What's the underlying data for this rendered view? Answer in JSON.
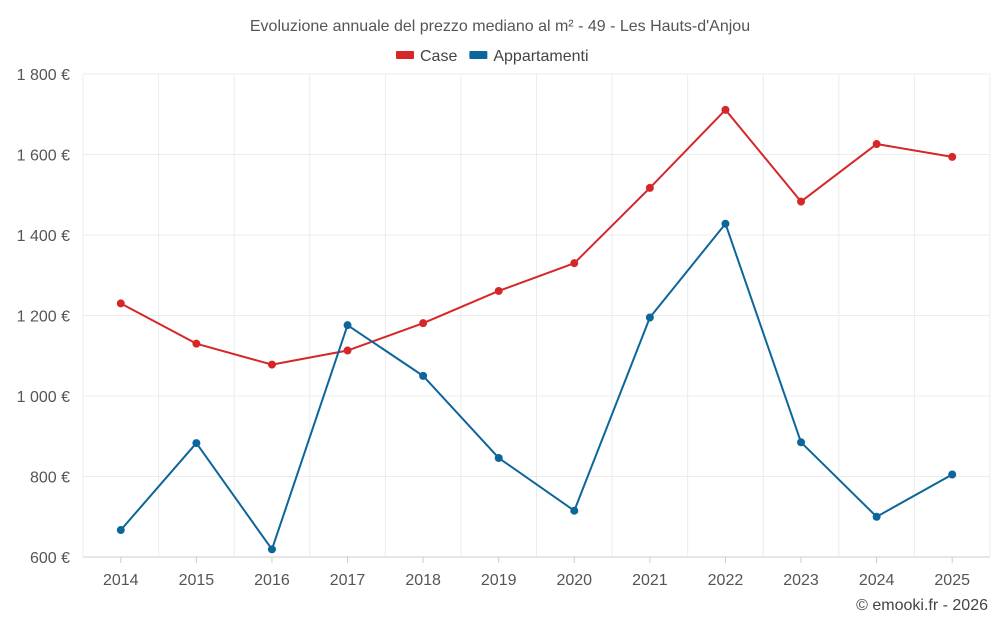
{
  "chart_data": {
    "type": "line",
    "title": "Evoluzione annuale del prezzo mediano al m² - 49 - Les Hauts-d'Anjou",
    "categories": [
      "2014",
      "2015",
      "2016",
      "2017",
      "2018",
      "2019",
      "2020",
      "2021",
      "2022",
      "2023",
      "2024",
      "2025"
    ],
    "series": [
      {
        "name": "Case",
        "color": "#d62728",
        "values": [
          1230,
          1130,
          1078,
          1113,
          1181,
          1261,
          1330,
          1517,
          1711,
          1483,
          1626,
          1594
        ]
      },
      {
        "name": "Appartamenti",
        "color": "#0d6699",
        "values": [
          667,
          883,
          619,
          1176,
          1050,
          846,
          715,
          1195,
          1428,
          885,
          700,
          805
        ]
      }
    ],
    "yticks": [
      "600 €",
      "800 €",
      "1 000 €",
      "1 200 €",
      "1 400 €",
      "1 600 €",
      "1 800 €"
    ],
    "ytick_values": [
      600,
      800,
      1000,
      1200,
      1400,
      1600,
      1800
    ],
    "ylim": [
      600,
      1800
    ],
    "xlabel": "",
    "ylabel": "",
    "legend_position": "top-center",
    "grid": true
  },
  "credit": "© emooki.fr - 2026"
}
